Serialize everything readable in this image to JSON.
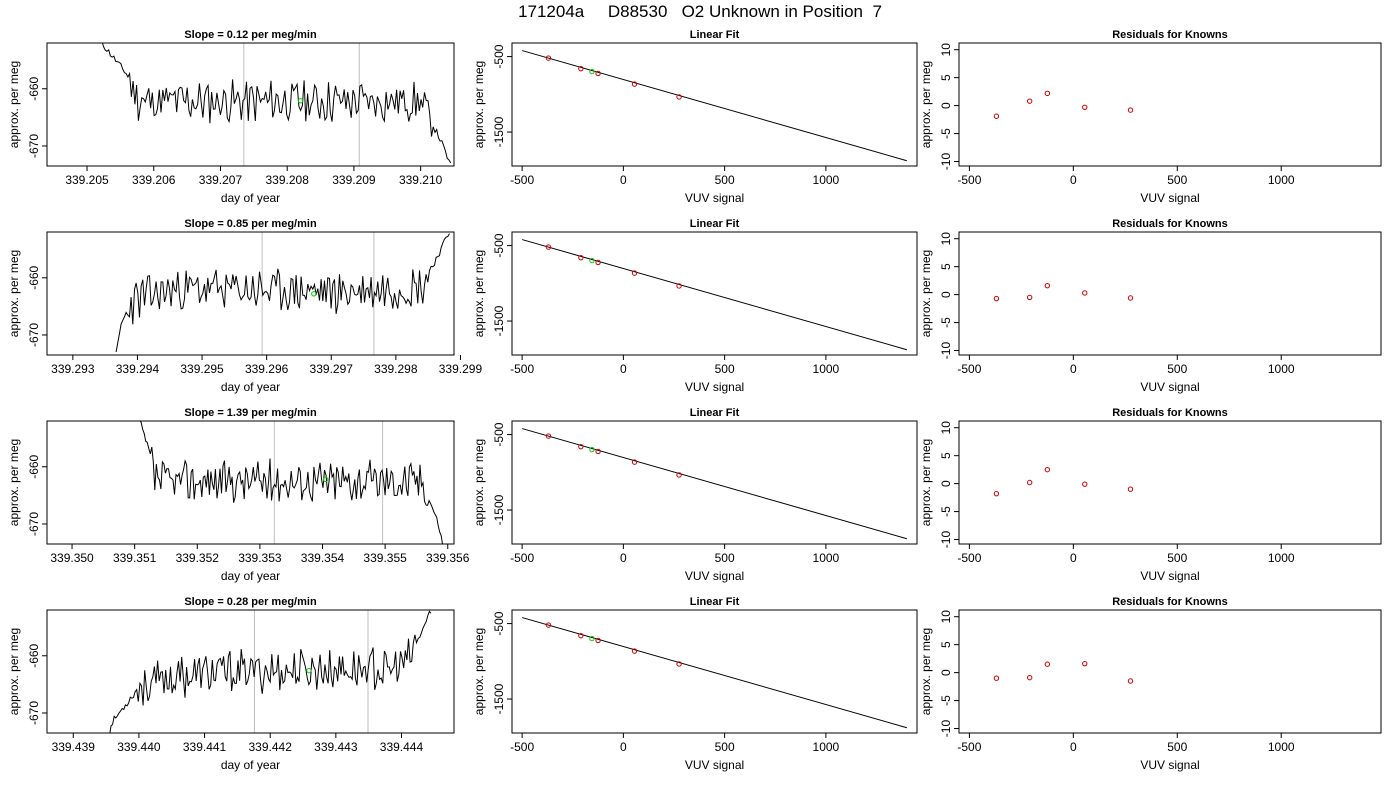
{
  "page_title": "171204a     D88530   O2 Unknown in Position  7",
  "colors": {
    "trace": "#000000",
    "unknown_point": "#00cc00",
    "known_point": "#cc0000",
    "marker_line": "#bebebe",
    "fit_line": "#000000"
  },
  "chart_data": [
    {
      "type": "line",
      "panel": "time-series",
      "row": 1,
      "title": "Slope =  0.12  per meg/min",
      "xlabel": "day of year",
      "ylabel": "approx. per meg",
      "xlim": [
        339.2044,
        339.2105
      ],
      "ylim": [
        -673.5,
        -652
      ],
      "xticks": [
        "339.205",
        "339.206",
        "339.207",
        "339.208",
        "339.209",
        "339.210"
      ],
      "yticks": [
        "-660",
        "-670"
      ],
      "markers": [
        339.20735,
        339.20908
      ],
      "unknown_point": [
        339.2082,
        -662.1
      ],
      "seed": 11,
      "trace_knots": [
        [
          339.20522,
          -652
        ],
        [
          339.2056,
          -657.5
        ],
        [
          339.20575,
          -661.8
        ],
        [
          339.2059,
          -662.2
        ],
        [
          339.2085,
          -662.2
        ],
        [
          339.21,
          -662.2
        ],
        [
          339.2101,
          -664.5
        ],
        [
          339.2103,
          -669
        ],
        [
          339.21045,
          -673.5
        ]
      ]
    },
    {
      "type": "line",
      "panel": "linear-fit",
      "row": 1,
      "title": "Linear Fit",
      "xlabel": "VUV signal",
      "ylabel": "approx. per meg",
      "xlim": [
        -550,
        1450
      ],
      "ylim": [
        -1950,
        -320
      ],
      "xticks": [
        -500,
        0,
        500,
        1000
      ],
      "yticks": [
        -500,
        -1500
      ],
      "line": [
        [
          -500,
          -420
        ],
        [
          1400,
          -1880
        ]
      ],
      "known_points": [
        [
          -370,
          -520
        ],
        [
          -210,
          -660
        ],
        [
          -125,
          -723
        ],
        [
          55,
          -865
        ],
        [
          275,
          -1035
        ]
      ],
      "unknown_point": [
        -155,
        -699
      ]
    },
    {
      "type": "scatter",
      "panel": "residuals",
      "row": 1,
      "title": "Residuals for Knowns",
      "xlabel": "VUV signal",
      "ylabel": "approx. per meg",
      "xlim": [
        -550,
        1480
      ],
      "ylim": [
        -10.8,
        11.2
      ],
      "xticks": [
        -500,
        0,
        500,
        1000
      ],
      "yticks": [
        10,
        5,
        0,
        -5,
        -10
      ],
      "points": [
        [
          -370,
          -1.9
        ],
        [
          -210,
          0.8
        ],
        [
          -125,
          2.2
        ],
        [
          55,
          -0.3
        ],
        [
          275,
          -0.8
        ]
      ]
    },
    {
      "type": "line",
      "panel": "time-series",
      "row": 2,
      "title": "Slope =  0.85  per meg/min",
      "xlabel": "day of year",
      "ylabel": "approx. per meg",
      "xlim": [
        339.2926,
        339.2989
      ],
      "ylim": [
        -673.5,
        -652
      ],
      "xticks": [
        "339.293",
        "339.294",
        "339.295",
        "339.296",
        "339.297",
        "339.298",
        "339.299"
      ],
      "yticks": [
        "-660",
        "-670"
      ],
      "markers": [
        339.29593,
        339.29766
      ],
      "unknown_point": [
        339.29673,
        -662.8
      ],
      "seed": 23,
      "trace_knots": [
        [
          339.29367,
          -673.5
        ],
        [
          339.29375,
          -668
        ],
        [
          339.2939,
          -664.5
        ],
        [
          339.29405,
          -663.5
        ],
        [
          339.2946,
          -662
        ],
        [
          339.2954,
          -662
        ],
        [
          339.2972,
          -662.5
        ],
        [
          339.2984,
          -661.5
        ],
        [
          339.2985,
          -659.5
        ],
        [
          339.2987,
          -655
        ],
        [
          339.29883,
          -652
        ]
      ]
    },
    {
      "type": "line",
      "panel": "linear-fit",
      "row": 2,
      "title": "Linear Fit",
      "xlabel": "VUV signal",
      "ylabel": "approx. per meg",
      "xlim": [
        -550,
        1450
      ],
      "ylim": [
        -1950,
        -320
      ],
      "xticks": [
        -500,
        0,
        500,
        1000
      ],
      "yticks": [
        -500,
        -1500
      ],
      "line": [
        [
          -500,
          -420
        ],
        [
          1400,
          -1880
        ]
      ],
      "known_points": [
        [
          -370,
          -520
        ],
        [
          -210,
          -660
        ],
        [
          -125,
          -723
        ],
        [
          55,
          -865
        ],
        [
          275,
          -1035
        ]
      ],
      "unknown_point": [
        -155,
        -699
      ]
    },
    {
      "type": "scatter",
      "panel": "residuals",
      "row": 2,
      "title": "Residuals for Knowns",
      "xlabel": "VUV signal",
      "ylabel": "approx. per meg",
      "xlim": [
        -550,
        1480
      ],
      "ylim": [
        -10.8,
        11.2
      ],
      "xticks": [
        -500,
        0,
        500,
        1000
      ],
      "yticks": [
        10,
        5,
        0,
        -5,
        -10
      ],
      "points": [
        [
          -370,
          -0.7
        ],
        [
          -210,
          -0.5
        ],
        [
          -125,
          1.6
        ],
        [
          55,
          0.3
        ],
        [
          275,
          -0.6
        ]
      ]
    },
    {
      "type": "line",
      "panel": "time-series",
      "row": 3,
      "title": "Slope =  1.39  per meg/min",
      "xlabel": "day of year",
      "ylabel": "approx. per meg",
      "xlim": [
        339.3496,
        339.3561
      ],
      "ylim": [
        -673.5,
        -652
      ],
      "xticks": [
        "339.350",
        "339.351",
        "339.352",
        "339.353",
        "339.354",
        "339.355",
        "339.356"
      ],
      "yticks": [
        "-660",
        "-670"
      ],
      "markers": [
        339.35323,
        339.35496
      ],
      "unknown_point": [
        339.35405,
        -662.2
      ],
      "seed": 37,
      "trace_knots": [
        [
          339.35108,
          -652
        ],
        [
          339.35125,
          -658
        ],
        [
          339.3513,
          -661.5
        ],
        [
          339.35145,
          -662.5
        ],
        [
          339.3556,
          -662.5
        ],
        [
          339.35572,
          -666
        ],
        [
          339.35585,
          -670
        ],
        [
          339.35592,
          -673.5
        ]
      ]
    },
    {
      "type": "line",
      "panel": "linear-fit",
      "row": 3,
      "title": "Linear Fit",
      "xlabel": "VUV signal",
      "ylabel": "approx. per meg",
      "xlim": [
        -550,
        1450
      ],
      "ylim": [
        -1950,
        -320
      ],
      "xticks": [
        -500,
        0,
        500,
        1000
      ],
      "yticks": [
        -500,
        -1500
      ],
      "line": [
        [
          -500,
          -420
        ],
        [
          1400,
          -1880
        ]
      ],
      "known_points": [
        [
          -370,
          -520
        ],
        [
          -210,
          -660
        ],
        [
          -125,
          -723
        ],
        [
          55,
          -865
        ],
        [
          275,
          -1035
        ]
      ],
      "unknown_point": [
        -155,
        -699
      ]
    },
    {
      "type": "scatter",
      "panel": "residuals",
      "row": 3,
      "title": "Residuals for Knowns",
      "xlabel": "VUV signal",
      "ylabel": "approx. per meg",
      "xlim": [
        -550,
        1480
      ],
      "ylim": [
        -10.8,
        11.2
      ],
      "xticks": [
        -500,
        0,
        500,
        1000
      ],
      "yticks": [
        10,
        5,
        0,
        -5,
        -10
      ],
      "points": [
        [
          -370,
          -1.8
        ],
        [
          -210,
          0.2
        ],
        [
          -125,
          2.5
        ],
        [
          55,
          -0.1
        ],
        [
          275,
          -1.0
        ]
      ]
    },
    {
      "type": "line",
      "panel": "time-series",
      "row": 4,
      "title": "Slope =  0.28  per meg/min",
      "xlabel": "day of year",
      "ylabel": "approx. per meg",
      "xlim": [
        339.4386,
        339.4448
      ],
      "ylim": [
        -673.5,
        -652
      ],
      "xticks": [
        "339.439",
        "339.440",
        "339.441",
        "339.442",
        "339.443",
        "339.444"
      ],
      "yticks": [
        "-660",
        "-670"
      ],
      "markers": [
        339.44176,
        339.44349
      ],
      "unknown_point": [
        339.44259,
        -662.6
      ],
      "seed": 53,
      "trace_knots": [
        [
          339.43955,
          -673.5
        ],
        [
          339.4396,
          -671.5
        ],
        [
          339.4398,
          -668.5
        ],
        [
          339.44,
          -665.5
        ],
        [
          339.4406,
          -663.5
        ],
        [
          339.4414,
          -662.8
        ],
        [
          339.4436,
          -662.2
        ],
        [
          339.4438,
          -663
        ],
        [
          339.4439,
          -662
        ],
        [
          339.4441,
          -661
        ],
        [
          339.4443,
          -656
        ],
        [
          339.44445,
          -652
        ]
      ]
    },
    {
      "type": "line",
      "panel": "linear-fit",
      "row": 4,
      "title": "Linear Fit",
      "xlabel": "VUV signal",
      "ylabel": "approx. per meg",
      "xlim": [
        -550,
        1450
      ],
      "ylim": [
        -1950,
        -320
      ],
      "xticks": [
        -500,
        0,
        500,
        1000
      ],
      "yticks": [
        -500,
        -1500
      ],
      "line": [
        [
          -500,
          -420
        ],
        [
          1400,
          -1880
        ]
      ],
      "known_points": [
        [
          -370,
          -520
        ],
        [
          -210,
          -660
        ],
        [
          -125,
          -723
        ],
        [
          55,
          -865
        ],
        [
          275,
          -1035
        ]
      ],
      "unknown_point": [
        -155,
        -699
      ]
    },
    {
      "type": "scatter",
      "panel": "residuals",
      "row": 4,
      "title": "Residuals for Knowns",
      "xlabel": "VUV signal",
      "ylabel": "approx. per meg",
      "xlim": [
        -550,
        1480
      ],
      "ylim": [
        -10.8,
        11.2
      ],
      "xticks": [
        -500,
        0,
        500,
        1000
      ],
      "yticks": [
        10,
        5,
        0,
        -5,
        -10
      ],
      "points": [
        [
          -370,
          -1.0
        ],
        [
          -210,
          -0.9
        ],
        [
          -125,
          1.5
        ],
        [
          55,
          1.6
        ],
        [
          275,
          -1.5
        ]
      ]
    }
  ]
}
